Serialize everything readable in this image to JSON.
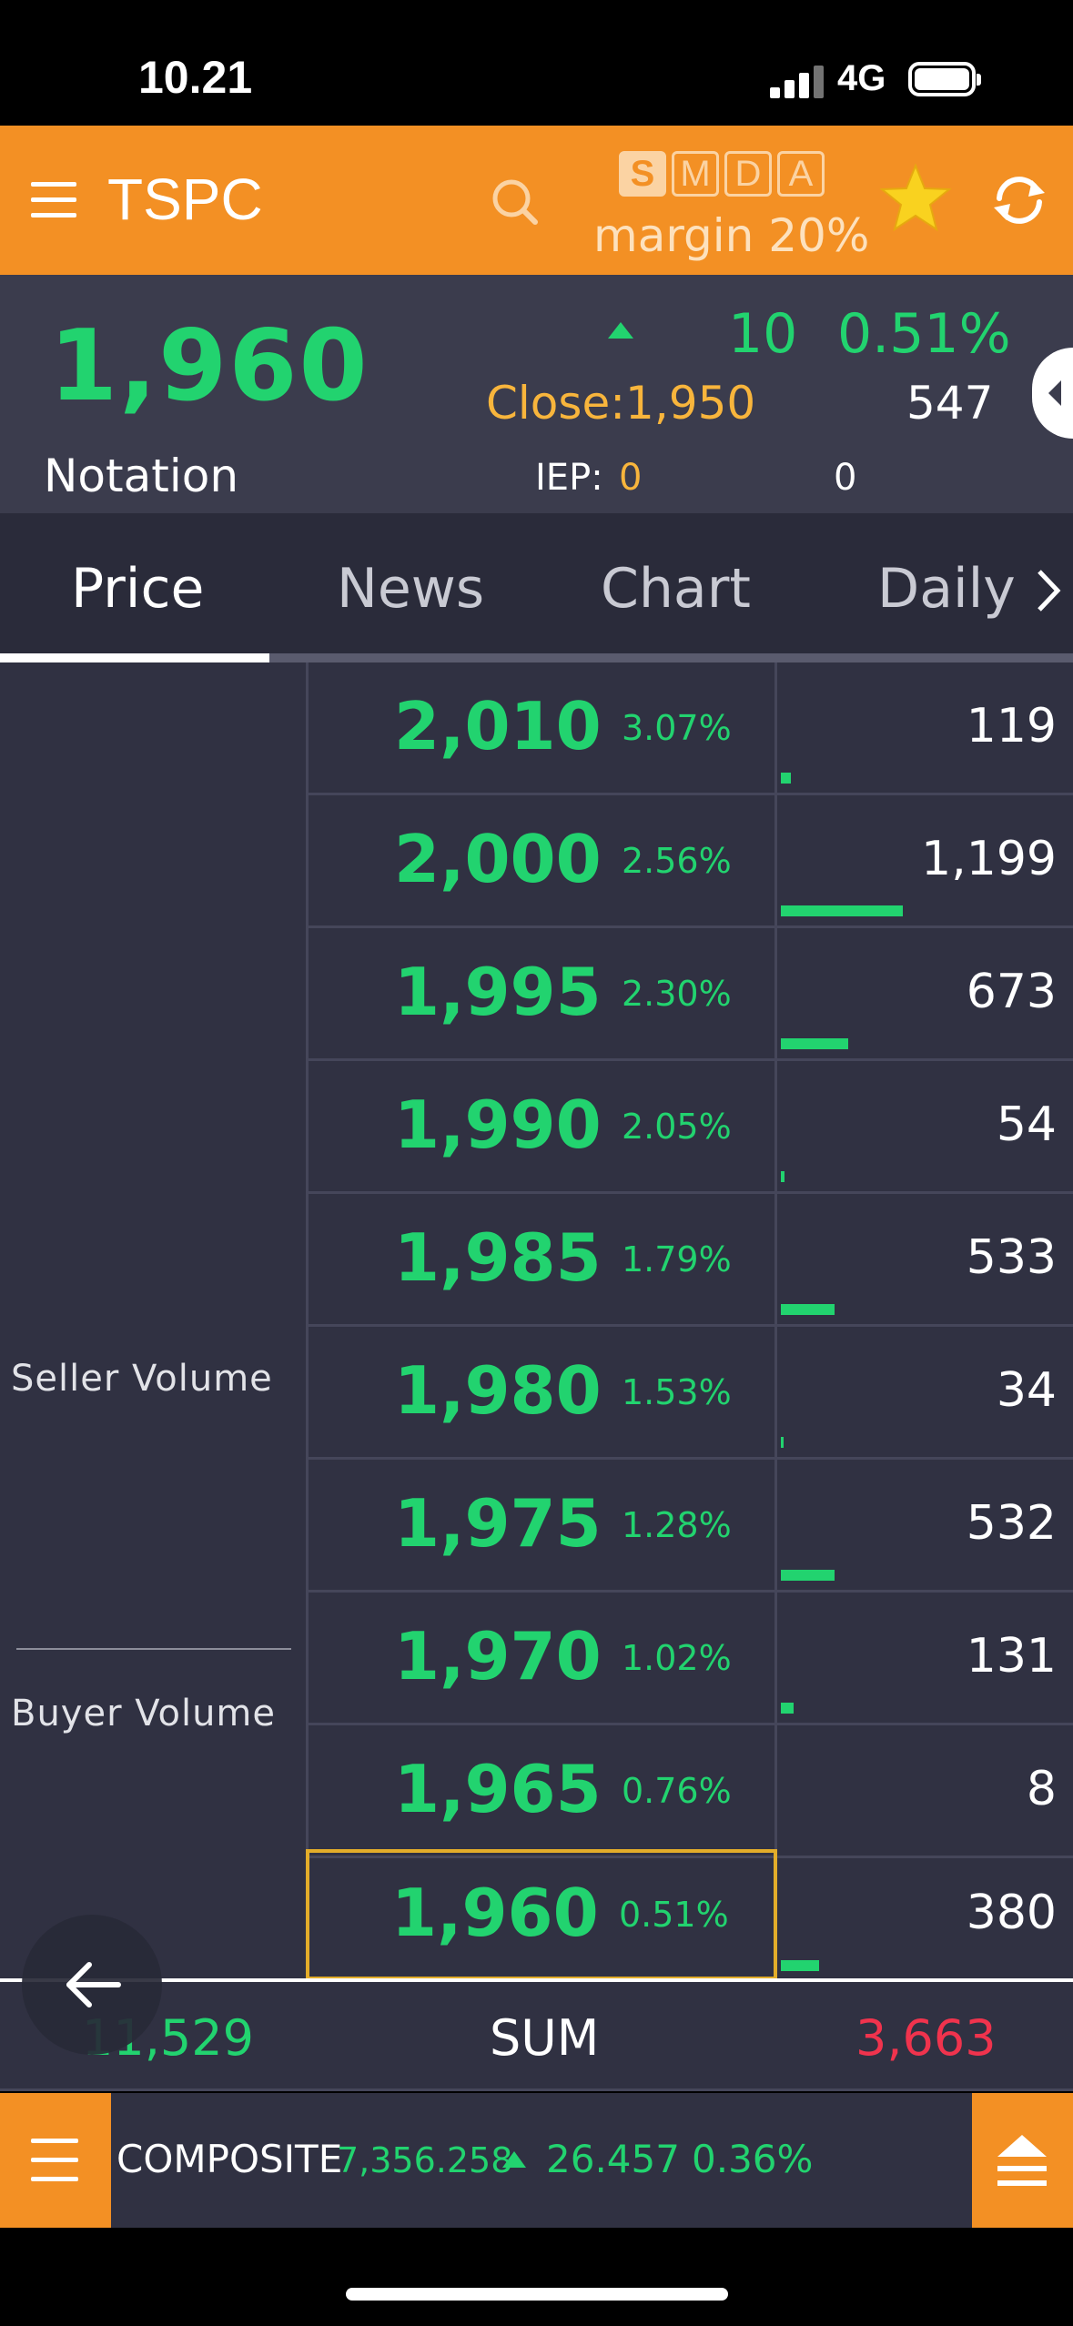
{
  "status_bar": {
    "time": "10.21",
    "network": "4G"
  },
  "header": {
    "symbol": "TSPC",
    "board_buttons": [
      "S",
      "M",
      "D",
      "A"
    ],
    "active_board": "S",
    "margin_label": "margin 20%",
    "accent_color": "#f39024"
  },
  "quote": {
    "last_price": "1,960",
    "notation_label": "Notation",
    "change": "10",
    "change_pct": "0.51%",
    "close_label": "Close:1,950",
    "volume": "547",
    "iep_label": "IEP:",
    "iep_value": "0",
    "iep_volume": "0"
  },
  "tabs": [
    {
      "label": "Price",
      "active": true
    },
    {
      "label": "News",
      "active": false
    },
    {
      "label": "Chart",
      "active": false
    },
    {
      "label": "Daily",
      "active": false
    }
  ],
  "order_book": {
    "seller_label": "Seller  Volume",
    "buyer_label": "Buyer  Volume",
    "rows": [
      {
        "price": "2,010",
        "pct": "3.07%",
        "volume": "119"
      },
      {
        "price": "2,000",
        "pct": "2.56%",
        "volume": "1,199"
      },
      {
        "price": "1,995",
        "pct": "2.30%",
        "volume": "673"
      },
      {
        "price": "1,990",
        "pct": "2.05%",
        "volume": "54"
      },
      {
        "price": "1,985",
        "pct": "1.79%",
        "volume": "533"
      },
      {
        "price": "1,980",
        "pct": "1.53%",
        "volume": "34"
      },
      {
        "price": "1,975",
        "pct": "1.28%",
        "volume": "532"
      },
      {
        "price": "1,970",
        "pct": "1.02%",
        "volume": "131"
      },
      {
        "price": "1,965",
        "pct": "0.76%",
        "volume": "8"
      },
      {
        "price": "1,960",
        "pct": "0.51%",
        "volume": "380"
      }
    ],
    "current_price": "1,960"
  },
  "sum": {
    "left": "11,529",
    "label": "SUM",
    "right": "3,663"
  },
  "index_bar": {
    "name": "COMPOSITE",
    "value": "7,356.258",
    "change": "26.457",
    "change_pct": "0.36%"
  }
}
